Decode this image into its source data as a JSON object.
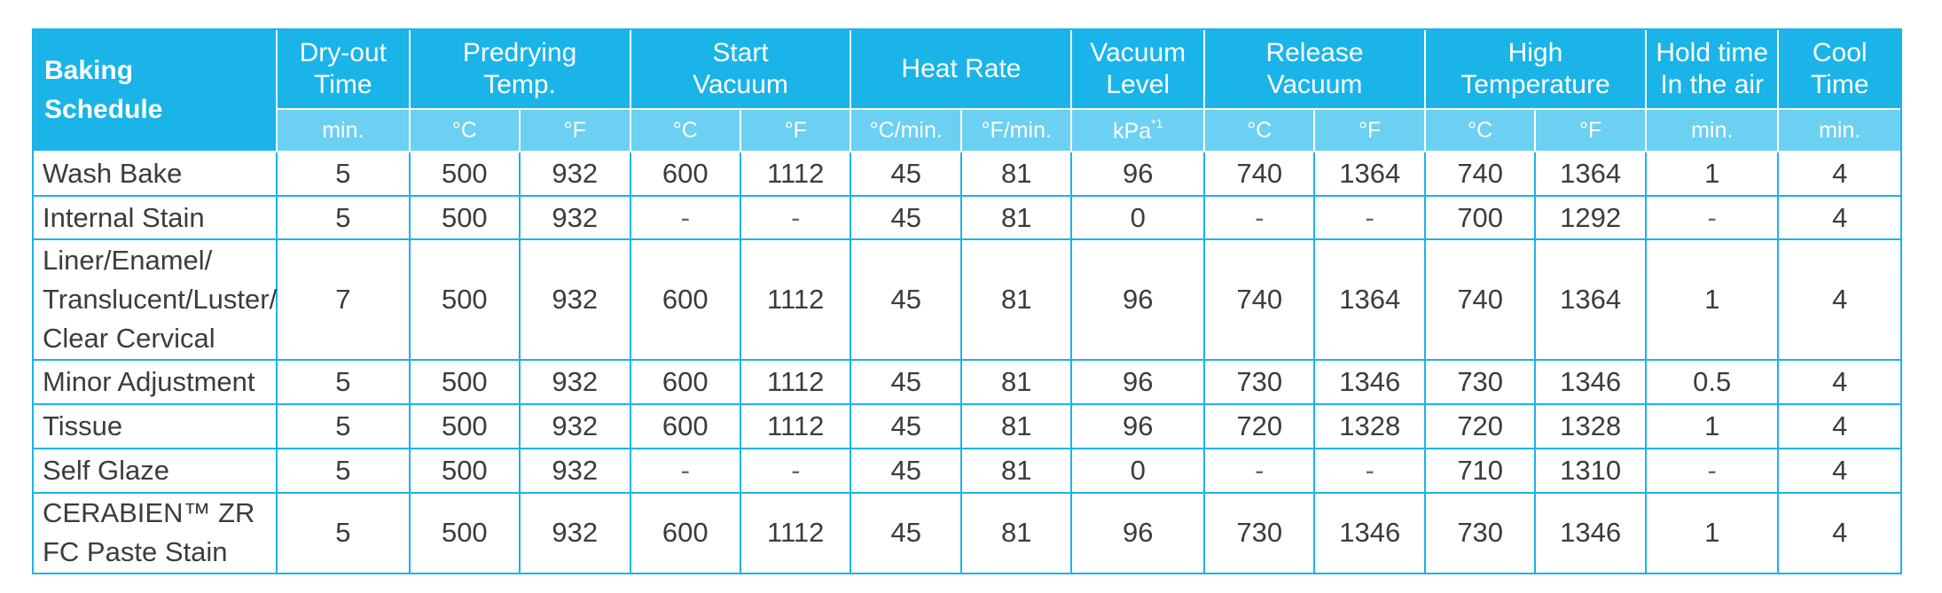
{
  "colors": {
    "header": "#1ab4e8",
    "subheader": "#6cd0f2",
    "border": "#1ab4e8",
    "text": "#3c3c3c"
  },
  "corner_title": "Baking\nSchedule",
  "groups": [
    {
      "label": "Dry-out\nTime",
      "units": [
        "min."
      ]
    },
    {
      "label": "Predrying\nTemp.",
      "units": [
        "°C",
        "°F"
      ]
    },
    {
      "label": "Start\nVacuum",
      "units": [
        "°C",
        "°F"
      ]
    },
    {
      "label": "Heat Rate",
      "units": [
        "°C/min.",
        "°F/min."
      ]
    },
    {
      "label": "Vacuum\nLevel",
      "units": [
        "kPa"
      ],
      "unit_note": "*1"
    },
    {
      "label": "Release\nVacuum",
      "units": [
        "°C",
        "°F"
      ]
    },
    {
      "label": "High\nTemperature",
      "units": [
        "°C",
        "°F"
      ]
    },
    {
      "label": "Hold time\nIn the air",
      "units": [
        "min."
      ]
    },
    {
      "label": "Cool\nTime",
      "units": [
        "min."
      ]
    }
  ],
  "rows": [
    {
      "name": "Wash Bake",
      "cells": [
        "5",
        "500",
        "932",
        "600",
        "1112",
        "45",
        "81",
        "96",
        "740",
        "1364",
        "740",
        "1364",
        "1",
        "4"
      ]
    },
    {
      "name": "Internal Stain",
      "cells": [
        "5",
        "500",
        "932",
        "-",
        "-",
        "45",
        "81",
        "0",
        "-",
        "-",
        "700",
        "1292",
        "-",
        "4"
      ]
    },
    {
      "name": "Liner/Enamel/\nTranslucent/Luster/\nClear Cervical",
      "cells": [
        "7",
        "500",
        "932",
        "600",
        "1112",
        "45",
        "81",
        "96",
        "740",
        "1364",
        "740",
        "1364",
        "1",
        "4"
      ]
    },
    {
      "name": "Minor Adjustment",
      "cells": [
        "5",
        "500",
        "932",
        "600",
        "1112",
        "45",
        "81",
        "96",
        "730",
        "1346",
        "730",
        "1346",
        "0.5",
        "4"
      ]
    },
    {
      "name": "Tissue",
      "cells": [
        "5",
        "500",
        "932",
        "600",
        "1112",
        "45",
        "81",
        "96",
        "720",
        "1328",
        "720",
        "1328",
        "1",
        "4"
      ]
    },
    {
      "name": "Self Glaze",
      "cells": [
        "5",
        "500",
        "932",
        "-",
        "-",
        "45",
        "81",
        "0",
        "-",
        "-",
        "710",
        "1310",
        "-",
        "4"
      ]
    },
    {
      "name": "CERABIEN™ ZR\nFC Paste Stain",
      "cells": [
        "5",
        "500",
        "932",
        "600",
        "1112",
        "45",
        "81",
        "96",
        "730",
        "1346",
        "730",
        "1346",
        "1",
        "4"
      ]
    }
  ]
}
